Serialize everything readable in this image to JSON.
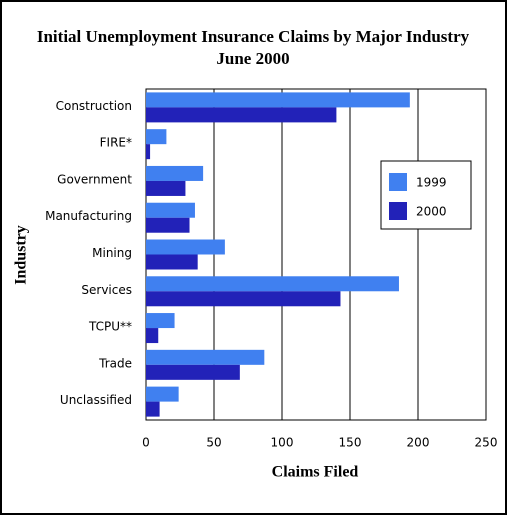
{
  "chart_data": {
    "type": "hbar",
    "title": [
      "Initial Unemployment Insurance Claims by Major Industry",
      "June 2000"
    ],
    "xlabel": "Claims Filed",
    "ylabel": "Industry",
    "categories": [
      "Construction",
      "FIRE*",
      "Government",
      "Manufacturing",
      "Mining",
      "Services",
      "TCPU**",
      "Trade",
      "Unclassified"
    ],
    "series": [
      {
        "name": "1999",
        "color": "#4080f0",
        "values": [
          194,
          15,
          42,
          36,
          58,
          186,
          21,
          87,
          24
        ]
      },
      {
        "name": "2000",
        "color": "#2222b8",
        "values": [
          140,
          3,
          29,
          32,
          38,
          143,
          9,
          69,
          10
        ]
      }
    ],
    "xlim": [
      0,
      250
    ],
    "xticks": [
      0,
      50,
      100,
      150,
      200,
      250
    ],
    "grid": true,
    "legend": "right"
  }
}
